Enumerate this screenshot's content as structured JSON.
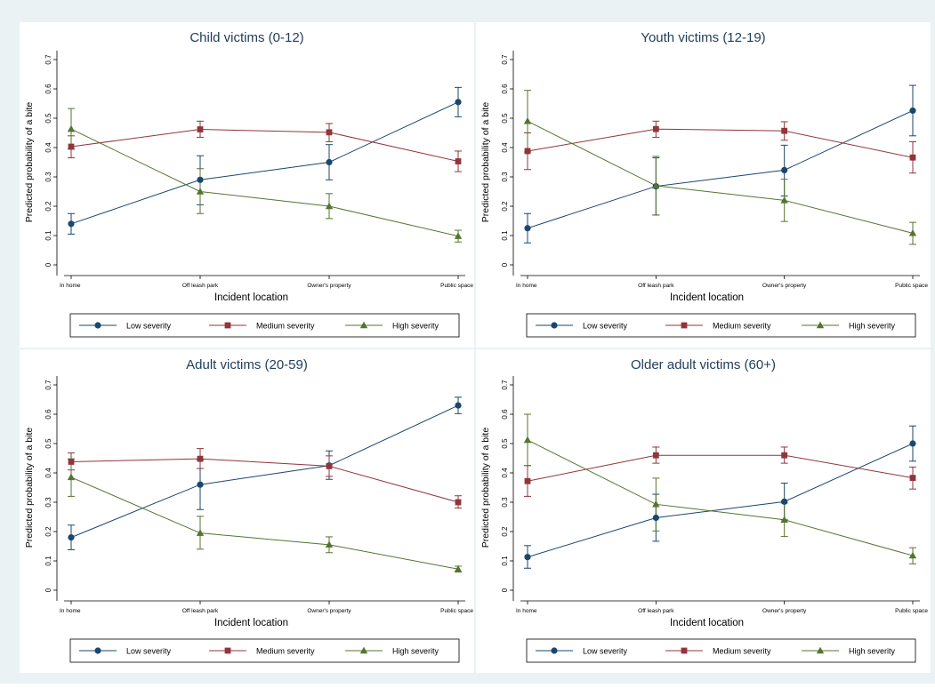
{
  "chart_data": [
    {
      "type": "line",
      "title": "Child victims (0-12)",
      "xlabel": "Incident location",
      "ylabel": "Predicted probability of a bite",
      "categories": [
        "In home",
        "Off leash park",
        "Owner's property",
        "Public space"
      ],
      "ylim": [
        0,
        0.7
      ],
      "yticks": [
        "0",
        "0.1",
        "0.2",
        "0.3",
        "0.4",
        "0.5",
        "0.6",
        "0.7"
      ],
      "series": [
        {
          "name": "Low severity",
          "color": "#1a476f",
          "marker": "circle",
          "values": [
            0.14,
            0.29,
            0.35,
            0.555
          ],
          "ci": [
            [
              0.105,
              0.175
            ],
            [
              0.205,
              0.372
            ],
            [
              0.29,
              0.41
            ],
            [
              0.505,
              0.605
            ]
          ]
        },
        {
          "name": "Medium severity",
          "color": "#90353b",
          "marker": "square",
          "values": [
            0.403,
            0.462,
            0.452,
            0.353
          ],
          "ci": [
            [
              0.365,
              0.44
            ],
            [
              0.435,
              0.49
            ],
            [
              0.42,
              0.482
            ],
            [
              0.318,
              0.388
            ]
          ]
        },
        {
          "name": "High severity",
          "color": "#55752f",
          "marker": "triangle",
          "values": [
            0.463,
            0.25,
            0.2,
            0.098
          ],
          "ci": [
            [
              0.395,
              0.533
            ],
            [
              0.175,
              0.328
            ],
            [
              0.158,
              0.243
            ],
            [
              0.078,
              0.118
            ]
          ]
        }
      ],
      "legend_position": "bottom"
    },
    {
      "type": "line",
      "title": "Youth victims (12-19)",
      "xlabel": "Incident location",
      "ylabel": "Predicted probability of a bite",
      "categories": [
        "In home",
        "Off leash park",
        "Owner's property",
        "Public space"
      ],
      "ylim": [
        0,
        0.7
      ],
      "yticks": [
        "0",
        "0.1",
        "0.2",
        "0.3",
        "0.4",
        "0.5",
        "0.6",
        "0.7"
      ],
      "series": [
        {
          "name": "Low severity",
          "color": "#1a476f",
          "marker": "circle",
          "values": [
            0.125,
            0.268,
            0.323,
            0.526
          ],
          "ci": [
            [
              0.075,
              0.175
            ],
            [
              0.17,
              0.365
            ],
            [
              0.235,
              0.408
            ],
            [
              0.44,
              0.612
            ]
          ]
        },
        {
          "name": "Medium severity",
          "color": "#90353b",
          "marker": "square",
          "values": [
            0.388,
            0.463,
            0.457,
            0.366
          ],
          "ci": [
            [
              0.325,
              0.45
            ],
            [
              0.435,
              0.49
            ],
            [
              0.425,
              0.488
            ],
            [
              0.313,
              0.42
            ]
          ]
        },
        {
          "name": "High severity",
          "color": "#55752f",
          "marker": "triangle",
          "values": [
            0.49,
            0.27,
            0.22,
            0.108
          ],
          "ci": [
            [
              0.385,
              0.595
            ],
            [
              0.17,
              0.37
            ],
            [
              0.148,
              0.292
            ],
            [
              0.07,
              0.145
            ]
          ]
        }
      ],
      "legend_position": "bottom"
    },
    {
      "type": "line",
      "title": "Adult victims (20-59)",
      "xlabel": "Incident location",
      "ylabel": "Predicted probability of a bite",
      "categories": [
        "In home",
        "Off leash park",
        "Owner's property",
        "Public space"
      ],
      "ylim": [
        0,
        0.7
      ],
      "yticks": [
        "0",
        "0.1",
        "0.2",
        "0.3",
        "0.4",
        "0.5",
        "0.6",
        "0.7"
      ],
      "series": [
        {
          "name": "Low severity",
          "color": "#1a476f",
          "marker": "circle",
          "values": [
            0.18,
            0.36,
            0.425,
            0.63
          ],
          "ci": [
            [
              0.138,
              0.222
            ],
            [
              0.275,
              0.445
            ],
            [
              0.378,
              0.475
            ],
            [
              0.602,
              0.658
            ]
          ]
        },
        {
          "name": "Medium severity",
          "color": "#90353b",
          "marker": "square",
          "values": [
            0.438,
            0.448,
            0.423,
            0.3
          ],
          "ci": [
            [
              0.41,
              0.468
            ],
            [
              0.415,
              0.483
            ],
            [
              0.388,
              0.458
            ],
            [
              0.28,
              0.322
            ]
          ]
        },
        {
          "name": "High severity",
          "color": "#55752f",
          "marker": "triangle",
          "values": [
            0.385,
            0.195,
            0.155,
            0.072
          ],
          "ci": [
            [
              0.32,
              0.448
            ],
            [
              0.14,
              0.252
            ],
            [
              0.128,
              0.182
            ],
            [
              0.062,
              0.082
            ]
          ]
        }
      ],
      "legend_position": "bottom"
    },
    {
      "type": "line",
      "title": "Older adult victims (60+)",
      "xlabel": "Incident location",
      "ylabel": "Predicted probability of a bite",
      "categories": [
        "In home",
        "Off leash park",
        "Owner's property",
        "Public space"
      ],
      "ylim": [
        0,
        0.7
      ],
      "yticks": [
        "0",
        "0.1",
        "0.2",
        "0.3",
        "0.4",
        "0.5",
        "0.6",
        "0.7"
      ],
      "series": [
        {
          "name": "Low severity",
          "color": "#1a476f",
          "marker": "circle",
          "values": [
            0.113,
            0.247,
            0.302,
            0.5
          ],
          "ci": [
            [
              0.075,
              0.152
            ],
            [
              0.167,
              0.327
            ],
            [
              0.24,
              0.365
            ],
            [
              0.44,
              0.56
            ]
          ]
        },
        {
          "name": "Medium severity",
          "color": "#90353b",
          "marker": "square",
          "values": [
            0.372,
            0.46,
            0.46,
            0.383
          ],
          "ci": [
            [
              0.32,
              0.425
            ],
            [
              0.433,
              0.488
            ],
            [
              0.433,
              0.488
            ],
            [
              0.345,
              0.42
            ]
          ]
        },
        {
          "name": "High severity",
          "color": "#55752f",
          "marker": "triangle",
          "values": [
            0.512,
            0.293,
            0.24,
            0.118
          ],
          "ci": [
            [
              0.425,
              0.6
            ],
            [
              0.202,
              0.382
            ],
            [
              0.183,
              0.297
            ],
            [
              0.09,
              0.145
            ]
          ]
        }
      ],
      "legend_position": "bottom"
    }
  ]
}
